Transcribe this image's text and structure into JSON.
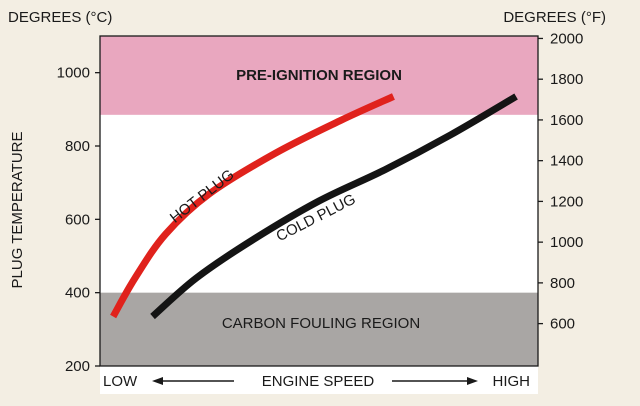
{
  "chart_data": {
    "type": "line",
    "left_axis_title": "DEGREES (°C)",
    "right_axis_title": "DEGREES (°F)",
    "ylabel": "PLUG TEMPERATURE",
    "x_low_label": "LOW",
    "x_axis_label": "ENGINE SPEED",
    "x_high_label": "HIGH",
    "ylim": [
      200,
      1100
    ],
    "xlim": [
      0,
      100
    ],
    "yticks": [
      200,
      400,
      600,
      800,
      1000
    ],
    "right_ticks": [
      {
        "f": 600,
        "c": 315.6
      },
      {
        "f": 800,
        "c": 426.7
      },
      {
        "f": 1000,
        "c": 537.8
      },
      {
        "f": 1200,
        "c": 648.9
      },
      {
        "f": 1400,
        "c": 760.0
      },
      {
        "f": 1600,
        "c": 871.1
      },
      {
        "f": 1800,
        "c": 982.2
      },
      {
        "f": 2000,
        "c": 1093.3
      }
    ],
    "regions": [
      {
        "name": "PRE-IGNITION REGION",
        "from": 885,
        "to": 1100,
        "color": "#e9a7bf"
      },
      {
        "name": "CARBON FOULING REGION",
        "from": 200,
        "to": 400,
        "color": "#a9a6a4"
      }
    ],
    "series": [
      {
        "name": "HOT PLUG",
        "color": "#e0221c",
        "x": [
          3,
          8,
          15,
          25,
          40,
          55,
          67
        ],
        "y": [
          335,
          440,
          560,
          670,
          780,
          870,
          935
        ]
      },
      {
        "name": "COLD PLUG",
        "color": "#141414",
        "x": [
          12,
          22,
          35,
          50,
          65,
          80,
          95
        ],
        "y": [
          335,
          440,
          545,
          650,
          735,
          830,
          935
        ]
      }
    ]
  }
}
